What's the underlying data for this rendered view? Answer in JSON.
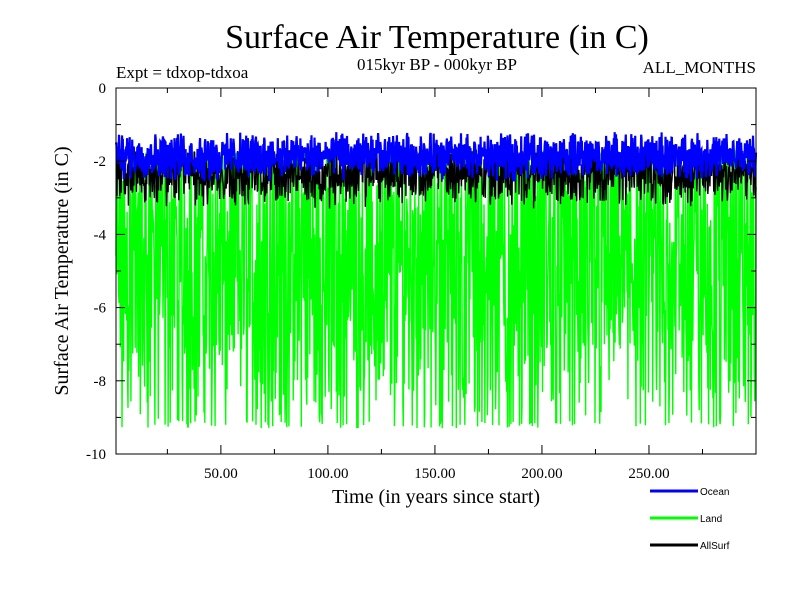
{
  "chart_data": {
    "type": "line",
    "title": "Surface Air Temperature (in C)",
    "subtitle": "015kyr BP - 000kyr BP",
    "experiment_label": "Expt = tdxop-tdxoa",
    "period_label": "ALL_MONTHS",
    "xlabel": "Time (in years since start)",
    "ylabel": "Surface Air Temperature (in C)",
    "xlim": [
      1,
      300
    ],
    "ylim": [
      -10,
      0
    ],
    "x_ticks": [
      {
        "value": 50,
        "label": "50.00"
      },
      {
        "value": 100,
        "label": "100.00"
      },
      {
        "value": 150,
        "label": "150.00"
      },
      {
        "value": 200,
        "label": "200.00"
      },
      {
        "value": 250,
        "label": "250.00"
      }
    ],
    "y_ticks": [
      {
        "value": 0,
        "label": "0"
      },
      {
        "value": -2,
        "label": "-2"
      },
      {
        "value": -4,
        "label": "-4"
      },
      {
        "value": -6,
        "label": "-6"
      },
      {
        "value": -8,
        "label": "-8"
      },
      {
        "value": -10,
        "label": "-10"
      }
    ],
    "legend_position": "bottom-right",
    "series": [
      {
        "name": "Ocean",
        "color": "#0000ff",
        "mean": -1.85,
        "min": -2.6,
        "max": -1.2
      },
      {
        "name": "Land",
        "color": "#00ff00",
        "mean": -4.9,
        "min": -9.3,
        "max": -1.7
      },
      {
        "name": "AllSurf",
        "color": "#000000",
        "mean": -2.3,
        "min": -3.3,
        "max": -1.7
      }
    ]
  }
}
